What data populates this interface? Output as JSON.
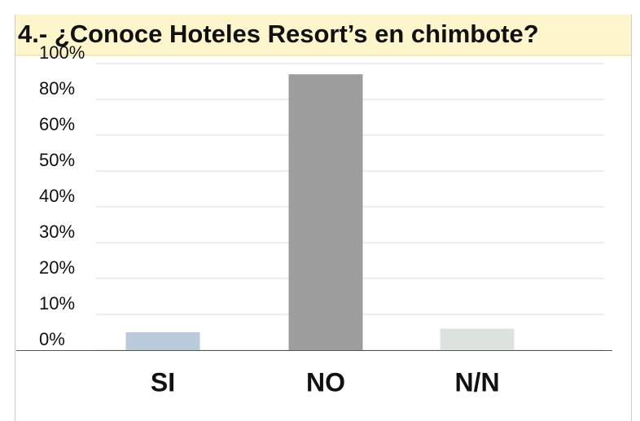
{
  "chart_data": {
    "type": "bar",
    "title": "4.- ¿Conoce Hoteles Resort’s en chimbote?",
    "categories": [
      "SI",
      "NO",
      "N/N"
    ],
    "values": [
      5,
      94,
      6
    ],
    "colors": [
      "#b9cbdb",
      "#9d9d9d",
      "#dce2de"
    ],
    "ylim": [
      0,
      100
    ],
    "yticks": [
      {
        "value": 0,
        "label": "0%"
      },
      {
        "value": 10,
        "label": "10%"
      },
      {
        "value": 20,
        "label": "20%"
      },
      {
        "value": 30,
        "label": "30%"
      },
      {
        "value": 40,
        "label": "40%"
      },
      {
        "value": 50,
        "label": "50%"
      },
      {
        "value": 60,
        "label": "60%"
      },
      {
        "value": 80,
        "label": "80%"
      },
      {
        "value": 100,
        "label": "100%"
      }
    ],
    "grid": true
  }
}
